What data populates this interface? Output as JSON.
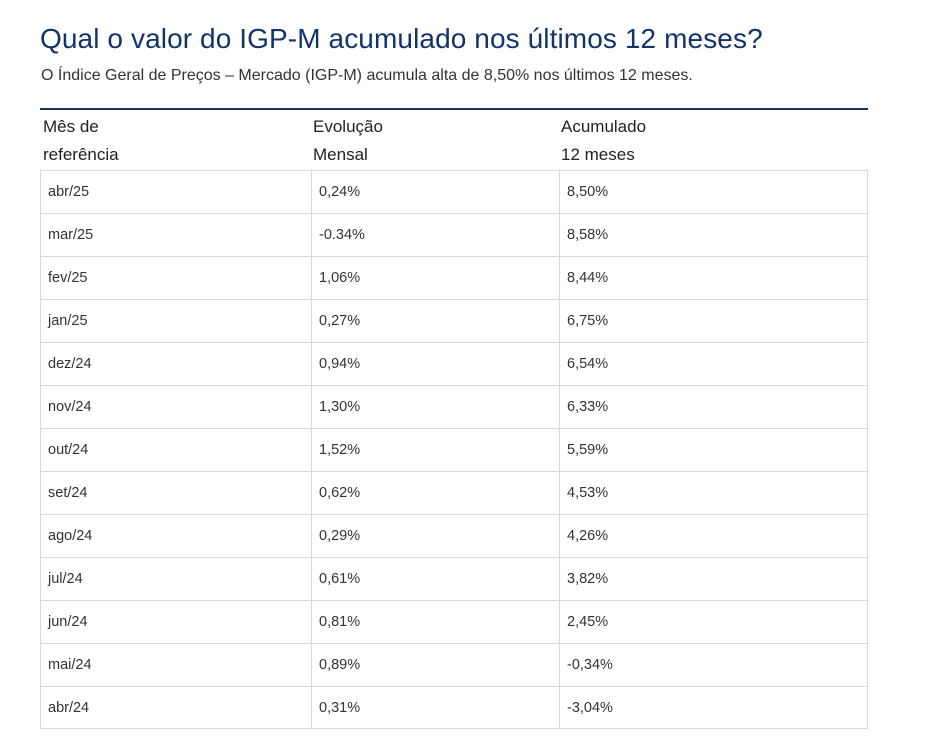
{
  "heading": {
    "title": "Qual o valor do IGP-M acumulado nos últimos 12 meses?",
    "subtitle": "O Índice Geral de Preços – Mercado (IGP-M) acumula alta de 8,50% nos últimos 12 meses."
  },
  "table": {
    "headers": [
      [
        "Mês de",
        "referência"
      ],
      [
        "Evolução",
        "Mensal"
      ],
      [
        "Acumulado",
        "12 meses"
      ]
    ],
    "rows": [
      [
        "abr/25",
        "0,24%",
        "8,50%"
      ],
      [
        "mar/25",
        "-0.34%",
        "8,58%"
      ],
      [
        "fev/25",
        "1,06%",
        "8,44%"
      ],
      [
        "jan/25",
        "0,27%",
        "6,75%"
      ],
      [
        "dez/24",
        "0,94%",
        "6,54%"
      ],
      [
        "nov/24",
        "1,30%",
        "6,33%"
      ],
      [
        "out/24",
        "1,52%",
        "5,59%"
      ],
      [
        "set/24",
        "0,62%",
        "4,53%"
      ],
      [
        "ago/24",
        "0,29%",
        "4,26%"
      ],
      [
        "jul/24",
        "0,61%",
        "3,82%"
      ],
      [
        "jun/24",
        "0,81%",
        "2,45%"
      ],
      [
        "mai/24",
        "0,89%",
        "-0,34%"
      ],
      [
        "abr/24",
        "0,31%",
        "-3,04%"
      ]
    ]
  },
  "colors": {
    "title": "#13336b",
    "table_top_border": "#17365f",
    "grid_lines": "#d9d9d9"
  }
}
